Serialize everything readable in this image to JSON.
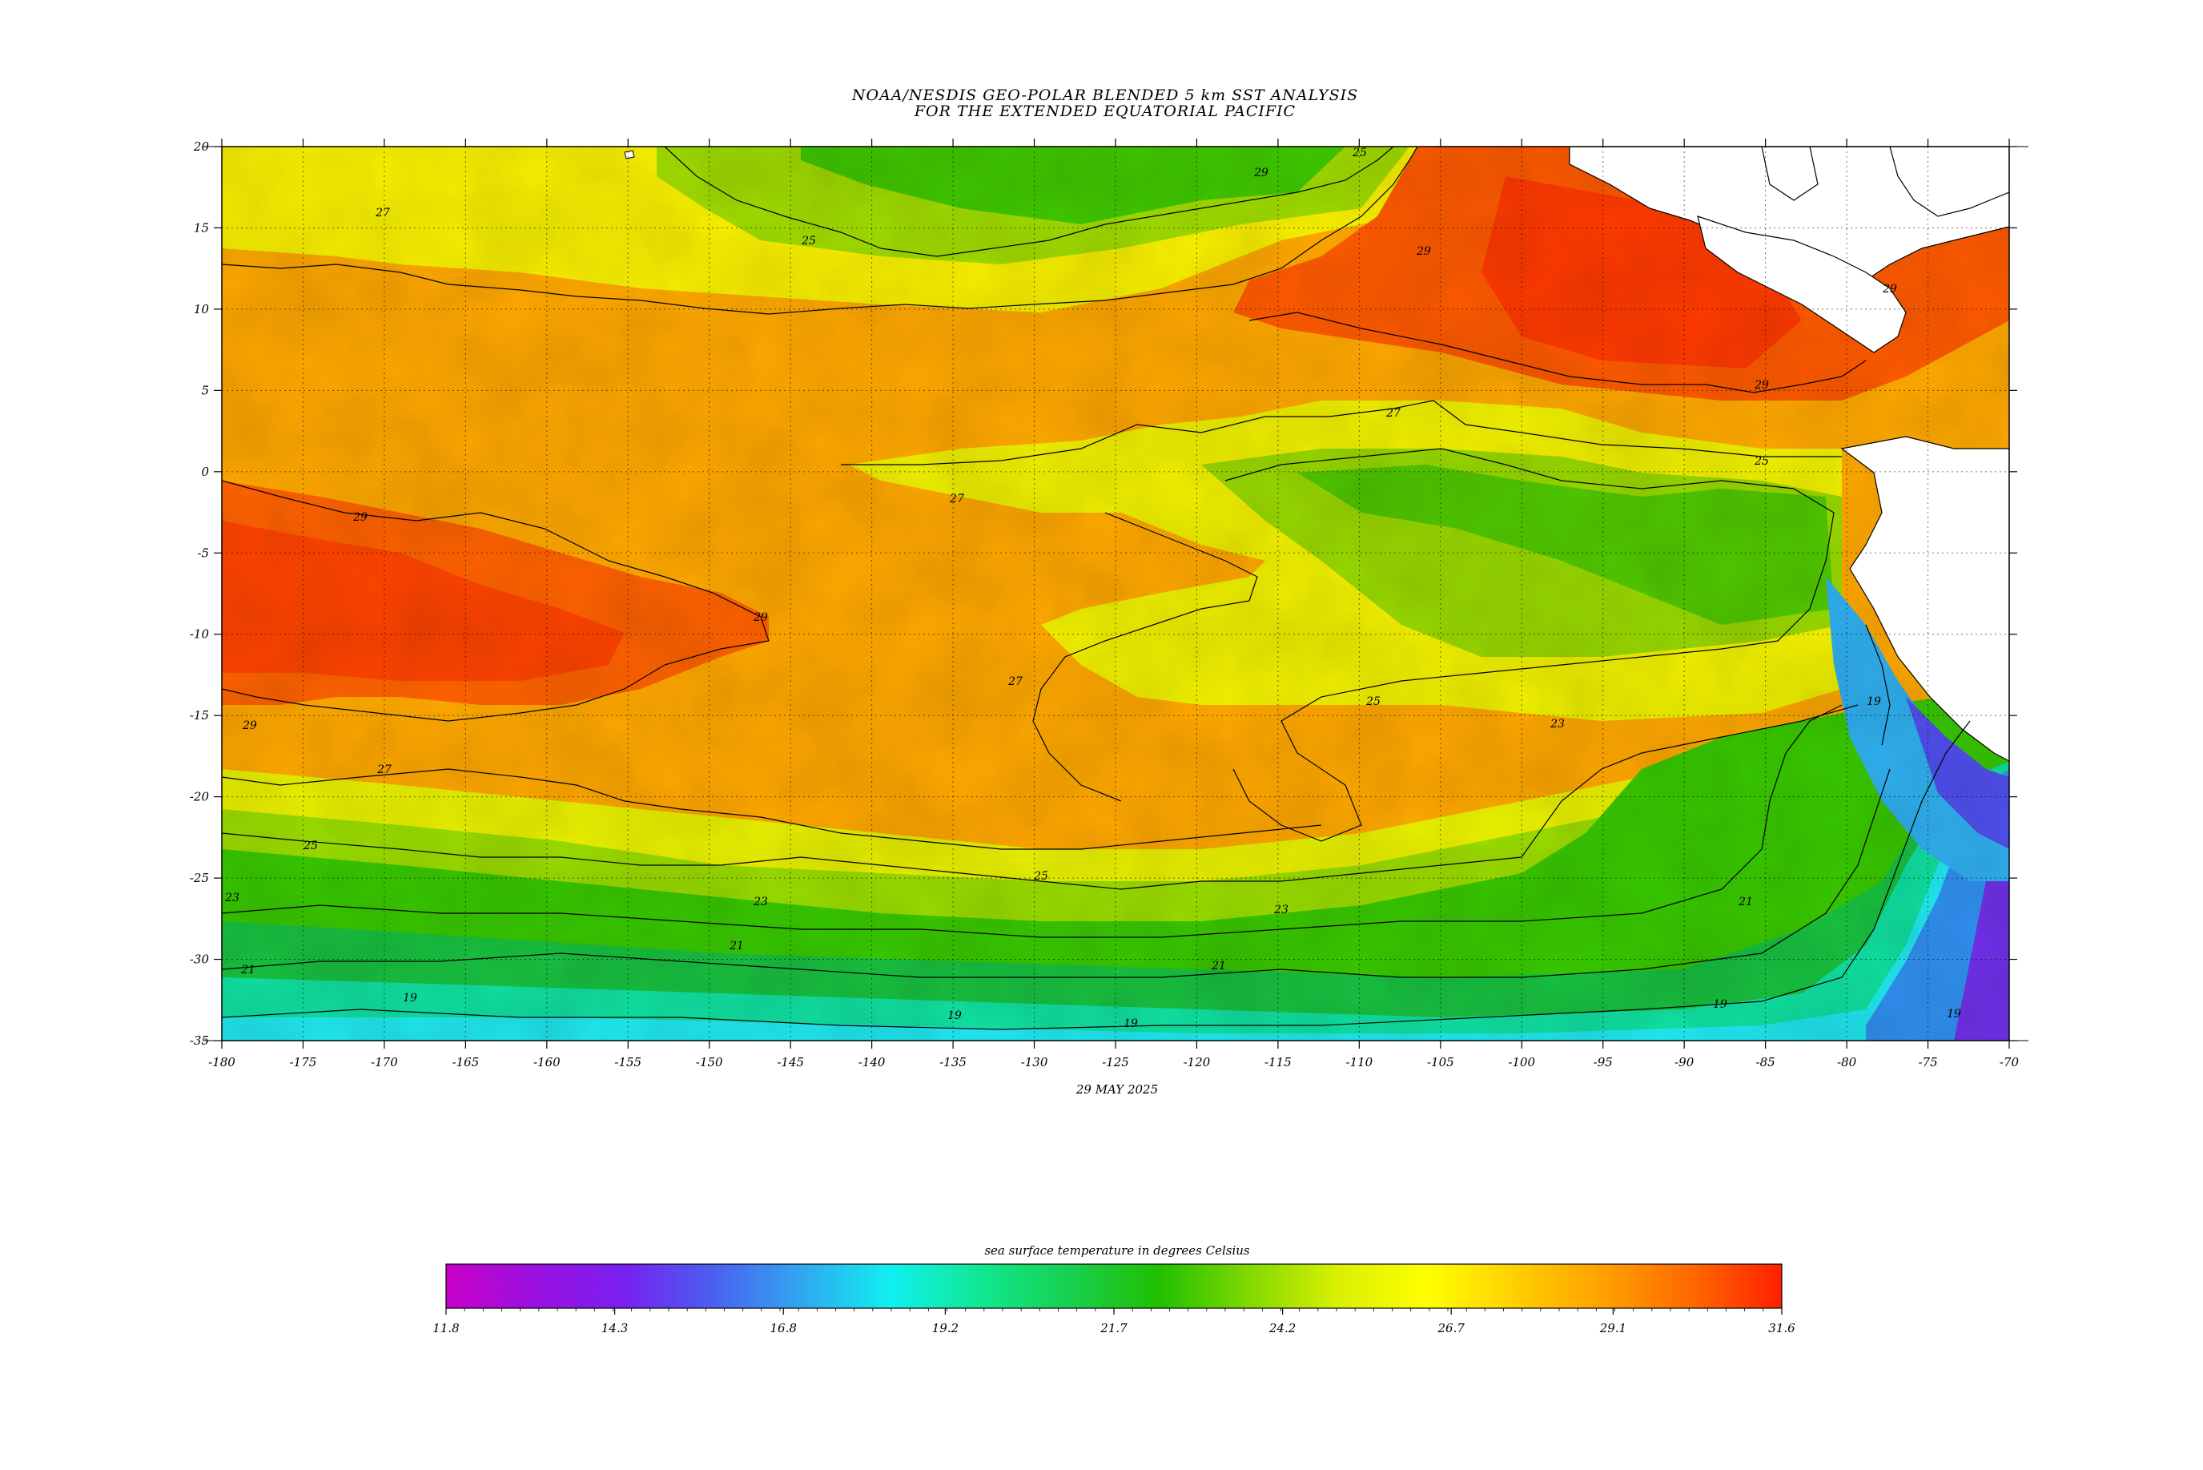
{
  "title": {
    "line1": "NOAA/NESDIS GEO-POLAR BLENDED 5 km SST ANALYSIS",
    "line2": "FOR THE EXTENDED EQUATORIAL PACIFIC"
  },
  "date_label": "29 MAY 2025",
  "map": {
    "lon_range": [
      -180,
      -70
    ],
    "lat_range": [
      -35,
      20
    ],
    "lon_ticks": [
      "-180",
      "-175",
      "-170",
      "-165",
      "-160",
      "-155",
      "-150",
      "-145",
      "-140",
      "-135",
      "-130",
      "-125",
      "-120",
      "-115",
      "-110",
      "-105",
      "-100",
      "-95",
      "-90",
      "-85",
      "-80",
      "-75",
      "-70"
    ],
    "lat_ticks": [
      "20",
      "15",
      "10",
      "5",
      "0",
      "-5",
      "-10",
      "-15",
      "-20",
      "-25",
      "-30",
      "-35"
    ],
    "contour_labels": [
      "29",
      "27",
      "25",
      "23",
      "21",
      "19"
    ],
    "land_color": "#ffffff",
    "coastline_color": "#000000"
  },
  "colorbar": {
    "label": "sea surface temperature in degrees Celsius",
    "ticks": [
      "11.8",
      "14.3",
      "16.8",
      "19.2",
      "21.7",
      "24.2",
      "26.7",
      "29.1",
      "31.6"
    ],
    "range": [
      11.8,
      31.6
    ],
    "colors": [
      "#c800c8",
      "#9a10e0",
      "#7820f0",
      "#4a60f0",
      "#30a8f0",
      "#10f0f0",
      "#10e890",
      "#18d050",
      "#20c000",
      "#80d800",
      "#d8f000",
      "#ffff00",
      "#ffd000",
      "#ffa000",
      "#ff6800",
      "#ff2000"
    ]
  }
}
